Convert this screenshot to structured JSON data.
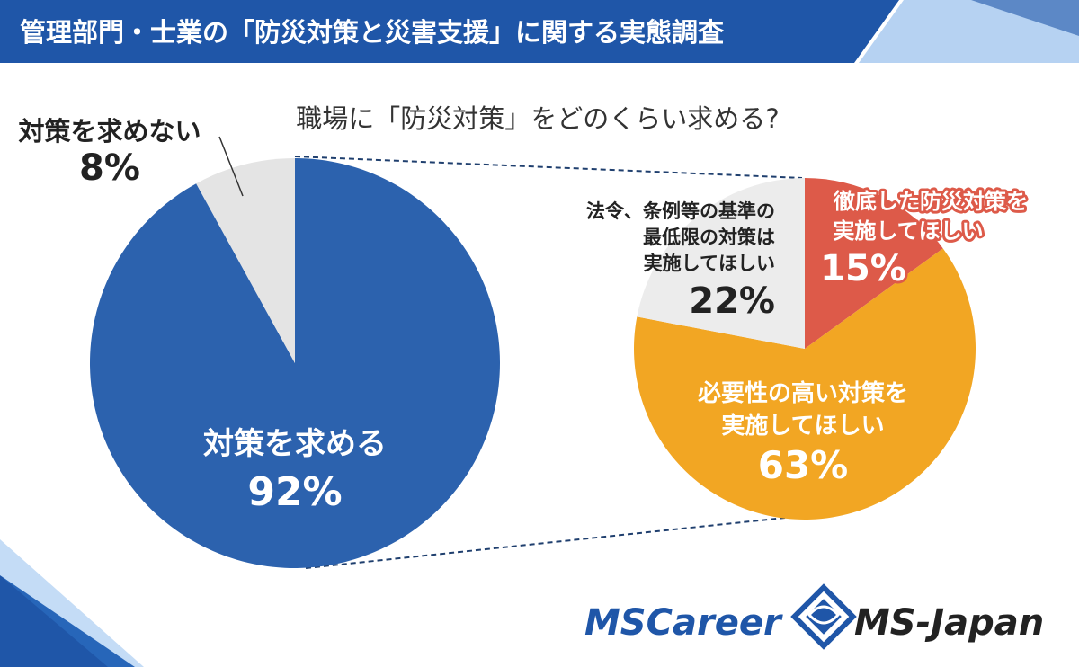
{
  "header": {
    "title": "管理部門・士業の「防災対策と災害支援」に関する実態調査"
  },
  "colors": {
    "brand_blue": "#1f56a8",
    "pie_blue": "#2c62ae",
    "pie_gray": "#e4e4e4",
    "pie_gray_light": "#ececec",
    "pie_orange": "#f2a623",
    "pie_red": "#dd5a49",
    "dark_text": "#222222"
  },
  "chart_data": [
    {
      "type": "pie",
      "title": "",
      "slices": [
        {
          "label": "対策を求める",
          "value": 92,
          "display": "92%",
          "color": "#2c62ae"
        },
        {
          "label": "対策を求めない",
          "value": 8,
          "display": "8%",
          "color": "#e4e4e4"
        }
      ]
    },
    {
      "type": "pie",
      "title": "職場に「防災対策」をどのくらい求める?",
      "slices": [
        {
          "label_lines": [
            "徹底した防災対策を",
            "実施してほしい"
          ],
          "value": 15,
          "display": "15%",
          "color": "#dd5a49"
        },
        {
          "label_lines": [
            "必要性の高い対策を",
            "実施してほしい"
          ],
          "value": 63,
          "display": "63%",
          "color": "#f2a623"
        },
        {
          "label_lines": [
            "法令、条例等の基準の",
            "最低限の対策は",
            "実施してほしい"
          ],
          "value": 22,
          "display": "22%",
          "color": "#ececec"
        }
      ]
    }
  ],
  "logos": {
    "mscareer": "MSCareer",
    "msjapan": "MS-Japan"
  }
}
